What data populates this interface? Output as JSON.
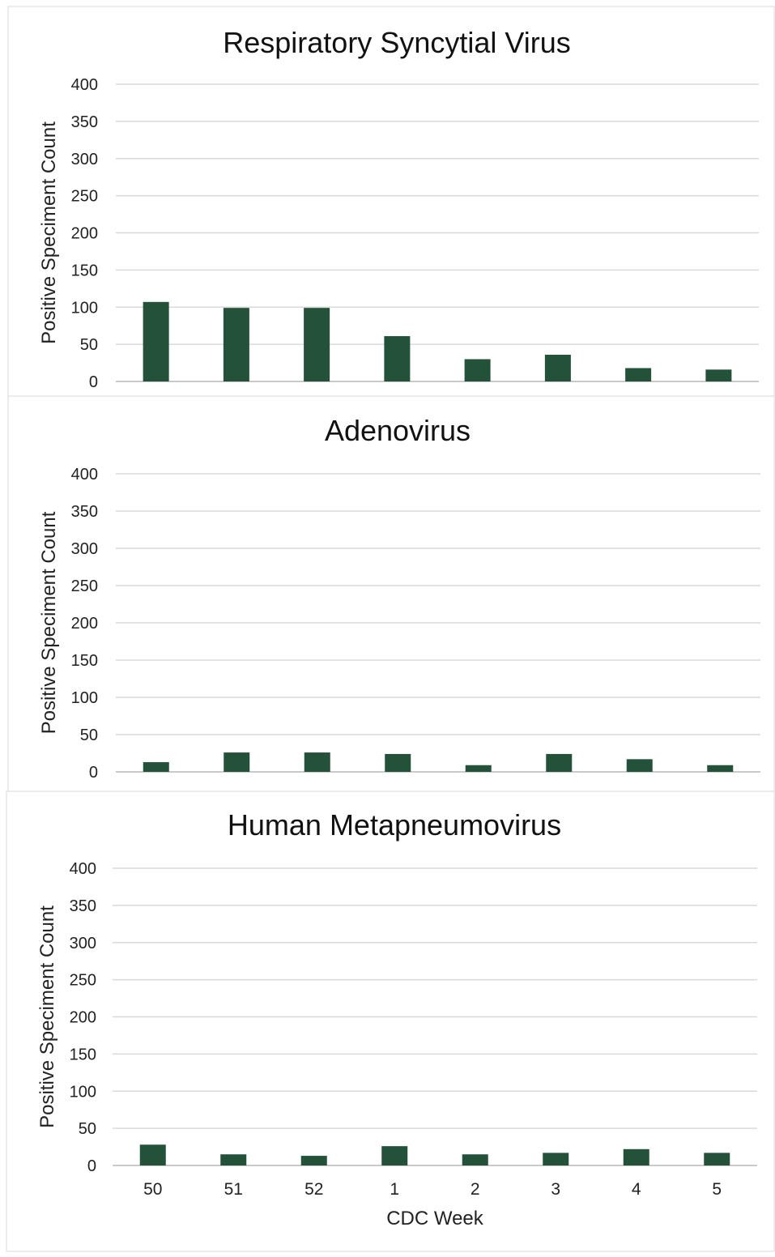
{
  "chart_data": [
    {
      "type": "bar",
      "title": "Respiratory Syncytial Virus",
      "ylabel": "Positive Speciment Count",
      "xlabel": "",
      "categories": [
        "50",
        "51",
        "52",
        "1",
        "2",
        "3",
        "4",
        "5"
      ],
      "values": [
        107,
        99,
        99,
        61,
        30,
        36,
        18,
        16
      ],
      "ylim": [
        0,
        400
      ],
      "yticks": [
        "0",
        "50",
        "100",
        "150",
        "200",
        "250",
        "300",
        "350",
        "400"
      ],
      "show_category_labels": false,
      "grid": true,
      "bar_color": "#24513a"
    },
    {
      "type": "bar",
      "title": "Adenovirus",
      "ylabel": "Positive Speciment Count",
      "xlabel": "",
      "categories": [
        "50",
        "51",
        "52",
        "1",
        "2",
        "3",
        "4",
        "5"
      ],
      "values": [
        13,
        26,
        26,
        24,
        9,
        24,
        17,
        9
      ],
      "ylim": [
        0,
        400
      ],
      "yticks": [
        "0",
        "50",
        "100",
        "150",
        "200",
        "250",
        "300",
        "350",
        "400"
      ],
      "show_category_labels": false,
      "grid": true,
      "bar_color": "#24513a"
    },
    {
      "type": "bar",
      "title": "Human Metapneumovirus",
      "ylabel": "Positive Speciment Count",
      "xlabel": "CDC Week",
      "categories": [
        "50",
        "51",
        "52",
        "1",
        "2",
        "3",
        "4",
        "5"
      ],
      "values": [
        28,
        15,
        13,
        26,
        15,
        17,
        22,
        17
      ],
      "ylim": [
        0,
        400
      ],
      "yticks": [
        "0",
        "50",
        "100",
        "150",
        "200",
        "250",
        "300",
        "350",
        "400"
      ],
      "show_category_labels": true,
      "grid": true,
      "bar_color": "#24513a"
    }
  ]
}
